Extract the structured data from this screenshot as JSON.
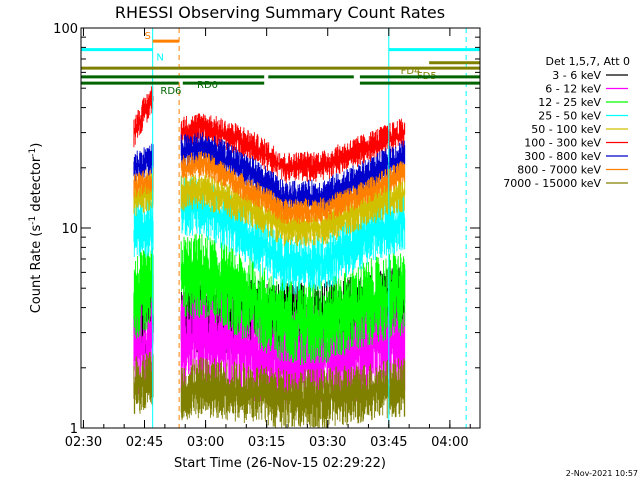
{
  "chart_data": {
    "type": "line",
    "title": "RHESSI Observing Summary Count Rates",
    "xlabel": "Start Time (26-Nov-15 02:29:22)",
    "ylabel": "Count Rate (s",
    "ylabel_sup": "-1",
    "ylabel_tail": " detector",
    "ylabel_end": ")",
    "x_range_minutes": [
      0,
      98
    ],
    "x_ticks": [
      {
        "label": "02:30",
        "t": 0.6
      },
      {
        "label": "02:45",
        "t": 15.6
      },
      {
        "label": "03:00",
        "t": 30.6
      },
      {
        "label": "03:15",
        "t": 45.6
      },
      {
        "label": "03:30",
        "t": 60.6
      },
      {
        "label": "03:45",
        "t": 75.6
      },
      {
        "label": "04:00",
        "t": 90.6
      }
    ],
    "y_scale": "log",
    "ylim": [
      1,
      100
    ],
    "y_ticks": [
      {
        "label": "1",
        "v": 1
      },
      {
        "label": "10",
        "v": 10
      },
      {
        "label": "100",
        "v": 100
      }
    ],
    "legend_header": "Det 1,5,7, Att 0",
    "legend_placement": "right",
    "data_window": [
      13,
      79.5
    ],
    "series": [
      {
        "name": "3 - 6 keV",
        "color": "#000000",
        "pre": 3.4,
        "profile": [
          [
            13,
            3.6
          ],
          [
            24,
            3.5
          ],
          [
            30,
            3.8
          ],
          [
            40,
            3.6
          ],
          [
            50,
            3.4
          ],
          [
            60,
            3.5
          ],
          [
            70,
            3.8
          ],
          [
            79.5,
            4.2
          ]
        ],
        "spread": 0.45
      },
      {
        "name": "6 - 12 keV",
        "color": "#ff00ff",
        "pre": 2.5,
        "profile": [
          [
            13,
            2.7
          ],
          [
            24,
            2.6
          ],
          [
            30,
            2.9
          ],
          [
            40,
            2.5
          ],
          [
            50,
            2.2
          ],
          [
            60,
            2.3
          ],
          [
            70,
            2.5
          ],
          [
            79.5,
            2.8
          ]
        ],
        "spread": 0.6
      },
      {
        "name": "12 - 25 keV",
        "color": "#00ff00",
        "pre": 4.5,
        "profile": [
          [
            13,
            4.4
          ],
          [
            24,
            5.6
          ],
          [
            30,
            5.8
          ],
          [
            40,
            4.5
          ],
          [
            50,
            3.4
          ],
          [
            60,
            3.4
          ],
          [
            70,
            4.2
          ],
          [
            79.5,
            4.8
          ]
        ],
        "spread": 0.5
      },
      {
        "name": "25 - 50 keV",
        "color": "#00ffff",
        "pre": 9.5,
        "profile": [
          [
            13,
            9
          ],
          [
            24,
            13
          ],
          [
            30,
            12.5
          ],
          [
            40,
            9.5
          ],
          [
            50,
            6.5
          ],
          [
            60,
            6.8
          ],
          [
            70,
            9
          ],
          [
            79.5,
            11
          ]
        ],
        "spread": 0.35
      },
      {
        "name": "50 - 100 keV",
        "color": "#d0c000",
        "pre": 14,
        "profile": [
          [
            13,
            14
          ],
          [
            24,
            15
          ],
          [
            30,
            15.5
          ],
          [
            40,
            13
          ],
          [
            50,
            10
          ],
          [
            60,
            10.2
          ],
          [
            70,
            12.5
          ],
          [
            79.5,
            15
          ]
        ],
        "spread": 0.22
      },
      {
        "name": "100 - 300 keV",
        "color": "#ff0000",
        "pre": 30,
        "profile": [
          [
            13,
            28
          ],
          [
            24,
            30
          ],
          [
            30,
            32
          ],
          [
            40,
            27
          ],
          [
            50,
            20
          ],
          [
            60,
            20.5
          ],
          [
            70,
            25
          ],
          [
            79.5,
            30
          ]
        ],
        "spread": 0.18
      },
      {
        "name": "300 - 800 keV",
        "color": "#0000cc",
        "pre": 20,
        "profile": [
          [
            13,
            18
          ],
          [
            24,
            24
          ],
          [
            30,
            25
          ],
          [
            40,
            20
          ],
          [
            50,
            14
          ],
          [
            60,
            14.5
          ],
          [
            70,
            18
          ],
          [
            79.5,
            23
          ]
        ],
        "spread": 0.2
      },
      {
        "name": "800 - 7000 keV",
        "color": "#ff8000",
        "pre": 16,
        "profile": [
          [
            13,
            16
          ],
          [
            24,
            20
          ],
          [
            30,
            21
          ],
          [
            40,
            16
          ],
          [
            50,
            12
          ],
          [
            60,
            12.3
          ],
          [
            70,
            15
          ],
          [
            79.5,
            19
          ]
        ],
        "spread": 0.15
      },
      {
        "name": "7000 - 15000 keV",
        "color": "#808000",
        "pre": 1.6,
        "profile": [
          [
            13,
            1.5
          ],
          [
            24,
            1.5
          ],
          [
            30,
            1.6
          ],
          [
            40,
            1.5
          ],
          [
            50,
            1.4
          ],
          [
            60,
            1.4
          ],
          [
            70,
            1.5
          ],
          [
            79.5,
            1.6
          ]
        ],
        "spread": 0.35
      }
    ],
    "vertical_markers": [
      {
        "t": 17.6,
        "color": "#00ffff",
        "style": "solid"
      },
      {
        "t": 24.1,
        "color": "#ff8000",
        "style": "dashed"
      },
      {
        "t": 75.6,
        "color": "#00ffff",
        "style": "solid"
      },
      {
        "t": 94.6,
        "color": "#00ffff",
        "style": "dashed"
      }
    ],
    "flags": [
      {
        "label": "S",
        "color": "#ff8000",
        "level": 86,
        "segments": [
          [
            17.6,
            24.1
          ]
        ],
        "label_t": 15.6
      },
      {
        "label": "N",
        "color": "#00ffff",
        "level": 78,
        "segments": [
          [
            0,
            17.6
          ],
          [
            75.6,
            98
          ]
        ],
        "label_t": 18.5
      },
      {
        "label": "FD4",
        "color": "#808000",
        "level": 67,
        "segments": [
          [
            85.5,
            98
          ]
        ],
        "label_t": 78.5
      },
      {
        "label": "FD5",
        "color": "#808000",
        "level": 63,
        "segments": [
          [
            0,
            98
          ]
        ],
        "label_t": 82.5
      },
      {
        "label": "RD0",
        "color": "#006400",
        "level": 57,
        "segments": [
          [
            0,
            45
          ],
          [
            46,
            67
          ],
          [
            68.5,
            98
          ]
        ],
        "label_t": 28.5
      },
      {
        "label": "RD6",
        "color": "#006400",
        "level": 53,
        "segments": [
          [
            0,
            24
          ],
          [
            25,
            45
          ],
          [
            68.5,
            98
          ]
        ],
        "label_t": 19.5
      }
    ]
  },
  "footer_stamp": "2-Nov-2021 10:57"
}
